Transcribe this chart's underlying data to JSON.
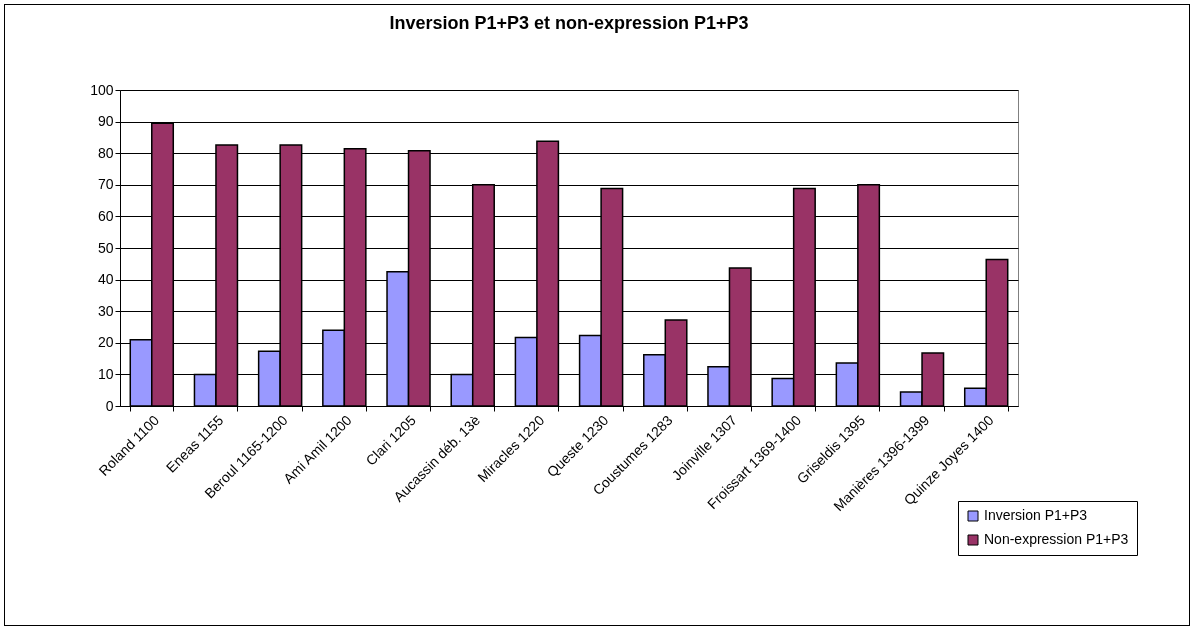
{
  "chart_data": {
    "type": "bar",
    "title": "Inversion P1+P3 et non-expression P1+P3",
    "categories": [
      "Roland 1100",
      "Eneas 1155",
      "Beroul 1165-1200",
      "Ami Amil 1200",
      "Clari 1205",
      "Aucassin déb. 13è",
      "Miracles 1220",
      "Queste 1230",
      "Coustumes 1283",
      "Joinville 1307",
      "Froissart 1369-1400",
      "Griseldis 1395",
      "Manières 1396-1399",
      "Quinze Joyes 1400"
    ],
    "series": [
      {
        "name": "Inversion P1+P3",
        "color": "#9999ff",
        "values": [
          21,
          10,
          17.3,
          24,
          42.5,
          10,
          21.7,
          22.3,
          16.2,
          12.4,
          8.7,
          13.6,
          4.4,
          5.6
        ]
      },
      {
        "name": "Non-expression P1+P3",
        "color": "#993366",
        "values": [
          89.5,
          82.6,
          82.6,
          81.4,
          80.8,
          70,
          83.8,
          68.8,
          27.2,
          43.7,
          68.8,
          70,
          16.8,
          46.4
        ]
      }
    ],
    "ylim": [
      0,
      100
    ],
    "yticks": [
      0,
      10,
      20,
      30,
      40,
      50,
      60,
      70,
      80,
      90,
      100
    ],
    "grid": "y",
    "legend": "bottom right"
  }
}
